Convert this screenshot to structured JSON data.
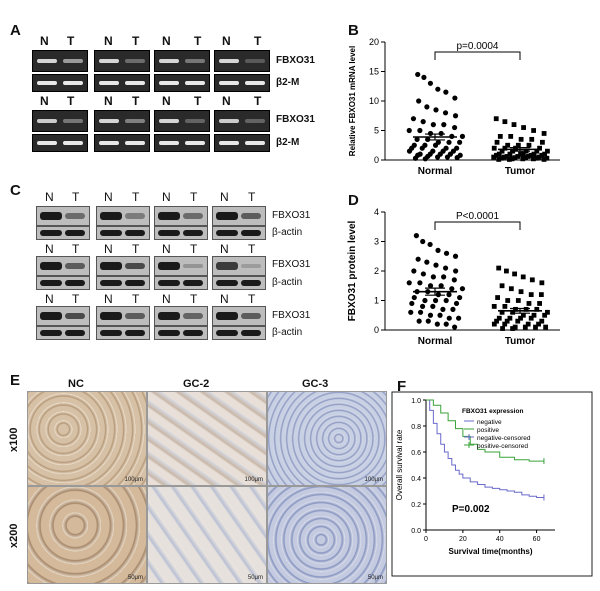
{
  "panels": {
    "a": "A",
    "b": "B",
    "c": "C",
    "d": "D",
    "e": "E",
    "f": "F"
  },
  "gel": {
    "lane_n": "N",
    "lane_t": "T",
    "gene": "FBXO31",
    "control": "β2-M"
  },
  "western": {
    "lane_n": "N",
    "lane_t": "T",
    "gene": "FBXO31",
    "control": "β-actin"
  },
  "ihc": {
    "col_headers": [
      "NC",
      "GC-2",
      "GC-3"
    ],
    "row_labels": [
      "x100",
      "x200"
    ],
    "scalebars": [
      "100μm",
      "100μm",
      "100μm",
      "50μm",
      "50μm",
      "50μm"
    ]
  },
  "chart_data": [
    {
      "type": "scatter",
      "panel": "B",
      "ylabel": "Relative FBXO31 mRNA level",
      "categories": [
        "Normal",
        "Tumor"
      ],
      "ylim": [
        0,
        20
      ],
      "yticks": [
        0,
        5,
        10,
        15,
        20
      ],
      "annotation": "p=0.0004",
      "series": [
        {
          "name": "Normal",
          "mean": 3.9,
          "sem": 0.5,
          "values": [
            14.5,
            14.0,
            13.0,
            12.0,
            11.5,
            10.5,
            10.0,
            9.0,
            8.5,
            8.0,
            7.5,
            7.0,
            6.5,
            6.0,
            6.0,
            5.5,
            5.0,
            5.0,
            4.5,
            4.5,
            4.0,
            4.0,
            3.5,
            3.5,
            3.0,
            3.0,
            3.0,
            2.5,
            2.5,
            2.5,
            2.0,
            2.0,
            2.0,
            2.0,
            1.5,
            1.5,
            1.5,
            1.5,
            1.0,
            1.0,
            1.0,
            1.0,
            0.8,
            0.8,
            0.6,
            0.5,
            0.5,
            0.4,
            0.3,
            0.2
          ]
        },
        {
          "name": "Tumor",
          "mean": 1.8,
          "sem": 0.3,
          "values": [
            7.0,
            6.5,
            6.0,
            5.5,
            5.0,
            4.5,
            4.0,
            4.0,
            3.5,
            3.5,
            3.0,
            3.0,
            2.5,
            2.5,
            2.5,
            2.0,
            2.0,
            2.0,
            2.0,
            1.5,
            1.5,
            1.5,
            1.5,
            1.5,
            1.0,
            1.0,
            1.0,
            1.0,
            1.0,
            1.0,
            0.8,
            0.8,
            0.8,
            0.6,
            0.6,
            0.6,
            0.5,
            0.5,
            0.5,
            0.4,
            0.4,
            0.3,
            0.3,
            0.3,
            0.2,
            0.2,
            0.2,
            0.1,
            0.1,
            0.1
          ]
        }
      ]
    },
    {
      "type": "scatter",
      "panel": "D",
      "ylabel": "FBXO31 protein level",
      "categories": [
        "Normal",
        "Tumor"
      ],
      "ylim": [
        0,
        4
      ],
      "yticks": [
        0,
        1,
        2,
        3,
        4
      ],
      "annotation": "P<0.0001",
      "series": [
        {
          "name": "Normal",
          "mean": 1.3,
          "sem": 0.12,
          "values": [
            3.2,
            3.0,
            2.9,
            2.7,
            2.6,
            2.5,
            2.4,
            2.3,
            2.2,
            2.1,
            2.0,
            2.0,
            1.9,
            1.8,
            1.8,
            1.7,
            1.6,
            1.6,
            1.5,
            1.5,
            1.4,
            1.4,
            1.3,
            1.3,
            1.2,
            1.2,
            1.1,
            1.1,
            1.0,
            1.0,
            1.0,
            0.9,
            0.9,
            0.8,
            0.8,
            0.7,
            0.7,
            0.6,
            0.6,
            0.5,
            0.5,
            0.4,
            0.4,
            0.3,
            0.3,
            0.2,
            0.2,
            0.1
          ]
        },
        {
          "name": "Tumor",
          "mean": 0.65,
          "sem": 0.08,
          "values": [
            2.1,
            2.0,
            1.9,
            1.8,
            1.7,
            1.6,
            1.5,
            1.4,
            1.3,
            1.2,
            1.2,
            1.1,
            1.0,
            1.0,
            0.9,
            0.9,
            0.8,
            0.8,
            0.7,
            0.7,
            0.7,
            0.6,
            0.6,
            0.6,
            0.5,
            0.5,
            0.5,
            0.4,
            0.4,
            0.4,
            0.4,
            0.3,
            0.3,
            0.3,
            0.3,
            0.2,
            0.2,
            0.2,
            0.2,
            0.1,
            0.1,
            0.1,
            0.1,
            0.05,
            0.05
          ]
        }
      ]
    },
    {
      "type": "line",
      "panel": "F",
      "title": "FBXO31 expression",
      "xlabel": "Survival time(months)",
      "ylabel": "Overall survival rate",
      "xlim": [
        0,
        70
      ],
      "ylim": [
        0,
        1.0
      ],
      "xticks": [
        0,
        20,
        40,
        60
      ],
      "yticks": [
        0.0,
        0.2,
        0.4,
        0.6,
        0.8,
        1.0
      ],
      "legend": [
        "negative",
        "positive",
        "negative-censored",
        "positive-censored"
      ],
      "annotation": "P=0.002",
      "colors": {
        "negative": "#6a6acb",
        "positive": "#3aa33a"
      },
      "series": [
        {
          "name": "negative",
          "x": [
            0,
            2,
            4,
            6,
            8,
            10,
            12,
            14,
            16,
            18,
            20,
            24,
            28,
            32,
            36,
            40,
            44,
            48,
            52,
            56,
            60,
            64
          ],
          "y": [
            1.0,
            0.92,
            0.82,
            0.74,
            0.66,
            0.6,
            0.55,
            0.5,
            0.46,
            0.43,
            0.4,
            0.37,
            0.35,
            0.33,
            0.32,
            0.31,
            0.3,
            0.29,
            0.27,
            0.26,
            0.25,
            0.25
          ]
        },
        {
          "name": "positive",
          "x": [
            0,
            4,
            8,
            12,
            16,
            20,
            24,
            28,
            32,
            40,
            48,
            56,
            64
          ],
          "y": [
            1.0,
            0.96,
            0.9,
            0.84,
            0.78,
            0.72,
            0.66,
            0.62,
            0.6,
            0.56,
            0.54,
            0.53,
            0.53
          ]
        }
      ]
    }
  ]
}
